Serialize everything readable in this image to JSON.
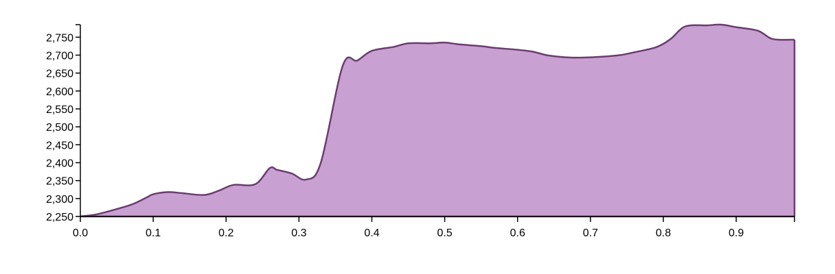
{
  "chart_data": {
    "type": "area",
    "title": "",
    "xlabel": "",
    "ylabel": "",
    "xlim": [
      0,
      0.98
    ],
    "ylim": [
      2250,
      2785
    ],
    "x_ticks": [
      0.0,
      0.1,
      0.2,
      0.3,
      0.4,
      0.5,
      0.6,
      0.7,
      0.8,
      0.9
    ],
    "x_tick_labels": [
      "0.0",
      "0.1",
      "0.2",
      "0.3",
      "0.4",
      "0.5",
      "0.6",
      "0.7",
      "0.8",
      "0.9"
    ],
    "y_ticks": [
      2250,
      2300,
      2350,
      2400,
      2450,
      2500,
      2550,
      2600,
      2650,
      2700,
      2750
    ],
    "y_tick_labels": [
      "2,250",
      "2,300",
      "2,350",
      "2,400",
      "2,450",
      "2,500",
      "2,550",
      "2,600",
      "2,650",
      "2,700",
      "2,750"
    ],
    "grid": false,
    "colors": {
      "fill": "#c9a0d2",
      "stroke": "#6a3d6f"
    },
    "series": [
      {
        "x": [
          0.0,
          0.02,
          0.04,
          0.07,
          0.09,
          0.1,
          0.12,
          0.14,
          0.17,
          0.19,
          0.21,
          0.24,
          0.26,
          0.27,
          0.29,
          0.31,
          0.33,
          0.36,
          0.38,
          0.4,
          0.43,
          0.45,
          0.48,
          0.5,
          0.52,
          0.55,
          0.57,
          0.6,
          0.62,
          0.64,
          0.66,
          0.68,
          0.71,
          0.74,
          0.76,
          0.79,
          0.81,
          0.83,
          0.86,
          0.88,
          0.9,
          0.93,
          0.95,
          0.98
        ],
        "y": [
          2250,
          2255,
          2265,
          2283,
          2302,
          2312,
          2318,
          2315,
          2310,
          2322,
          2338,
          2340,
          2385,
          2380,
          2370,
          2353,
          2400,
          2670,
          2685,
          2712,
          2723,
          2733,
          2733,
          2735,
          2730,
          2725,
          2720,
          2715,
          2710,
          2700,
          2695,
          2693,
          2695,
          2700,
          2708,
          2722,
          2745,
          2780,
          2783,
          2785,
          2778,
          2768,
          2745,
          2743
        ]
      }
    ]
  }
}
